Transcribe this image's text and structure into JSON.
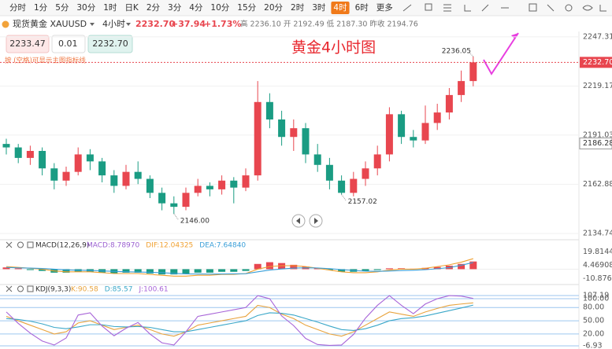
{
  "toolbar": {
    "items": [
      "分时",
      "1分",
      "5分",
      "30分",
      "1时",
      "日K",
      "2分",
      "3分",
      "4分",
      "10分",
      "15分",
      "20分",
      "2时",
      "3时",
      "4时",
      "6时",
      "更多"
    ],
    "active": 14
  },
  "header": {
    "symbol": "现货黄金 XAUUSD",
    "period": "4小时",
    "price": "2232.70",
    "change": "+37.94",
    "change_pct": "+1.73%",
    "stats": "高 2236.10  开 2192.49  低 2187.30  昨收 2194.76"
  },
  "order": {
    "sell": "2233.47",
    "lots": "0.01",
    "buy": "2232.70",
    "hint": "按 (空格)可显示主图指标线"
  },
  "chart_data": [
    {
      "type": "candlestick",
      "title": "黄金4小时图",
      "up_color": "#e8464f",
      "down_color": "#1a9c83",
      "open": [
        2186,
        2184,
        2178,
        2182,
        2172,
        2165,
        2170,
        2180,
        2176,
        2168,
        2162,
        2170,
        2166,
        2158,
        2152,
        2150,
        2158,
        2162,
        2160,
        2165,
        2161,
        2168,
        2210,
        2200,
        2190,
        2195,
        2180,
        2174,
        2165,
        2158,
        2166,
        2172,
        2180,
        2203,
        2190,
        2188,
        2198,
        2204,
        2214,
        2222
      ],
      "high": [
        2189,
        2186,
        2185,
        2184,
        2175,
        2173,
        2184,
        2183,
        2178,
        2171,
        2174,
        2176,
        2168,
        2161,
        2156,
        2161,
        2166,
        2164,
        2168,
        2167,
        2172,
        2222,
        2215,
        2205,
        2200,
        2198,
        2186,
        2178,
        2168,
        2170,
        2176,
        2185,
        2207,
        2205,
        2194,
        2208,
        2209,
        2218,
        2228,
        2236.05
      ],
      "low": [
        2180,
        2175,
        2174,
        2168,
        2160,
        2162,
        2168,
        2171,
        2164,
        2158,
        2160,
        2163,
        2155,
        2148,
        2146,
        2148,
        2156,
        2156,
        2157,
        2152,
        2159,
        2165,
        2195,
        2185,
        2182,
        2175,
        2170,
        2160,
        2157.02,
        2156,
        2162,
        2168,
        2176,
        2186,
        2184,
        2186,
        2194,
        2200,
        2210,
        2219
      ],
      "close": [
        2184,
        2178,
        2182,
        2172,
        2165,
        2170,
        2180,
        2176,
        2168,
        2162,
        2170,
        2166,
        2158,
        2152,
        2150,
        2158,
        2162,
        2160,
        2165,
        2161,
        2168,
        2210,
        2200,
        2190,
        2195,
        2180,
        2174,
        2165,
        2158,
        2166,
        2172,
        2180,
        2203,
        2190,
        2188,
        2198,
        2204,
        2214,
        2222,
        2232.7
      ],
      "ylim": [
        2133.4,
        2250.4
      ],
      "yticks": [
        2134.74,
        2162.88,
        2191.03,
        2219.17,
        2247.31
      ],
      "current_price": {
        "value": 2232.7,
        "label": "2232.70"
      },
      "marker": 2186.28,
      "annotations": [
        2236.05,
        {
          "value": 2146,
          "label": "2146.00"
        },
        2157.02
      ]
    },
    {
      "type": "macd",
      "title": "MACD(12,26,9)",
      "up_color": "#e8464f",
      "down_color": "#1a9c83",
      "ylim": [
        -14,
        22
      ],
      "yticks": [
        {
          "value": -10.87624,
          "label": "-10.87624"
        },
        {
          "value": 4.46908,
          "label": "4.46908"
        },
        {
          "value": 19.8144,
          "label": "19.81440"
        }
      ],
      "series": [
        {
          "name": "MACD:8.78970",
          "color": "#9a5fd0",
          "values": [
            2,
            1,
            -1,
            -2,
            -4,
            -4,
            -3,
            -3,
            -4,
            -5,
            -4,
            -4,
            -5,
            -6,
            -6,
            -5,
            -4,
            -4,
            -3,
            -3,
            -2,
            6,
            8,
            7,
            5,
            3,
            1,
            -1,
            -3,
            -3,
            -2,
            -1,
            1,
            1,
            0.5,
            1.5,
            2.5,
            4,
            6,
            8.7897
          ]
        },
        {
          "name": "DIF:12.04325",
          "color": "#f0a030",
          "values": [
            3,
            2,
            1,
            0,
            -2,
            -3,
            -3,
            -3,
            -4,
            -5,
            -5,
            -5,
            -6,
            -7,
            -8,
            -8,
            -7,
            -7,
            -6,
            -6,
            -5,
            0,
            3,
            4,
            4,
            3,
            1,
            -1,
            -3,
            -4,
            -4,
            -3,
            -1,
            0,
            0,
            1,
            3,
            5,
            8,
            12.04325
          ]
        },
        {
          "name": "DEA:7.64840",
          "color": "#3a9fd8",
          "values": [
            2,
            1.5,
            1.2,
            0.8,
            0,
            -0.8,
            -1.2,
            -1.6,
            -2,
            -2.5,
            -3,
            -3.3,
            -3.6,
            -4,
            -4.8,
            -5.4,
            -5.5,
            -5.6,
            -5.5,
            -5.4,
            -5.2,
            -3,
            -1,
            0.2,
            1.2,
            1.6,
            1.4,
            0.6,
            -0.5,
            -1.5,
            -2.2,
            -2.5,
            -2.1,
            -1.6,
            -1.2,
            -0.6,
            0.5,
            1.8,
            4.5,
            7.6484
          ]
        }
      ]
    },
    {
      "type": "line",
      "title": "KDJ(9,3,3)",
      "ylim": [
        -6.93,
        107.19
      ],
      "yticks": [
        -6.93,
        {
          "value": 20,
          "label": "20.00"
        },
        {
          "value": 50,
          "label": "50.00"
        },
        {
          "value": 80,
          "label": "80.00"
        },
        {
          "value": 100,
          "label": "100.00"
        },
        107.19
      ],
      "series": [
        {
          "name": "K:90.58",
          "color": "#e8a33d",
          "values": [
            60,
            50,
            40,
            30,
            20,
            25,
            45,
            50,
            40,
            30,
            35,
            40,
            30,
            20,
            15,
            25,
            40,
            45,
            50,
            55,
            60,
            85,
            80,
            65,
            55,
            40,
            30,
            20,
            15,
            25,
            40,
            55,
            70,
            65,
            60,
            70,
            78,
            85,
            88,
            90.58
          ]
        },
        {
          "name": "D:85.57",
          "color": "#3aa7c8",
          "values": [
            55,
            53,
            49,
            43,
            35,
            32,
            36,
            41,
            41,
            37,
            36,
            37,
            35,
            30,
            25,
            25,
            30,
            35,
            40,
            45,
            50,
            62,
            68,
            67,
            63,
            55,
            47,
            38,
            30,
            28,
            32,
            40,
            50,
            55,
            57,
            61,
            67,
            73,
            79,
            85.57
          ]
        },
        {
          "name": "J:100.61",
          "color": "#a865d8",
          "values": [
            70,
            44,
            22,
            4,
            -5,
            11,
            63,
            68,
            38,
            16,
            33,
            46,
            20,
            0,
            -5,
            25,
            60,
            65,
            70,
            75,
            80,
            107,
            100,
            61,
            39,
            10,
            -4,
            -6,
            -5,
            19,
            56,
            85,
            107,
            85,
            66,
            88,
            100,
            107,
            106,
            100.61
          ]
        }
      ]
    }
  ]
}
